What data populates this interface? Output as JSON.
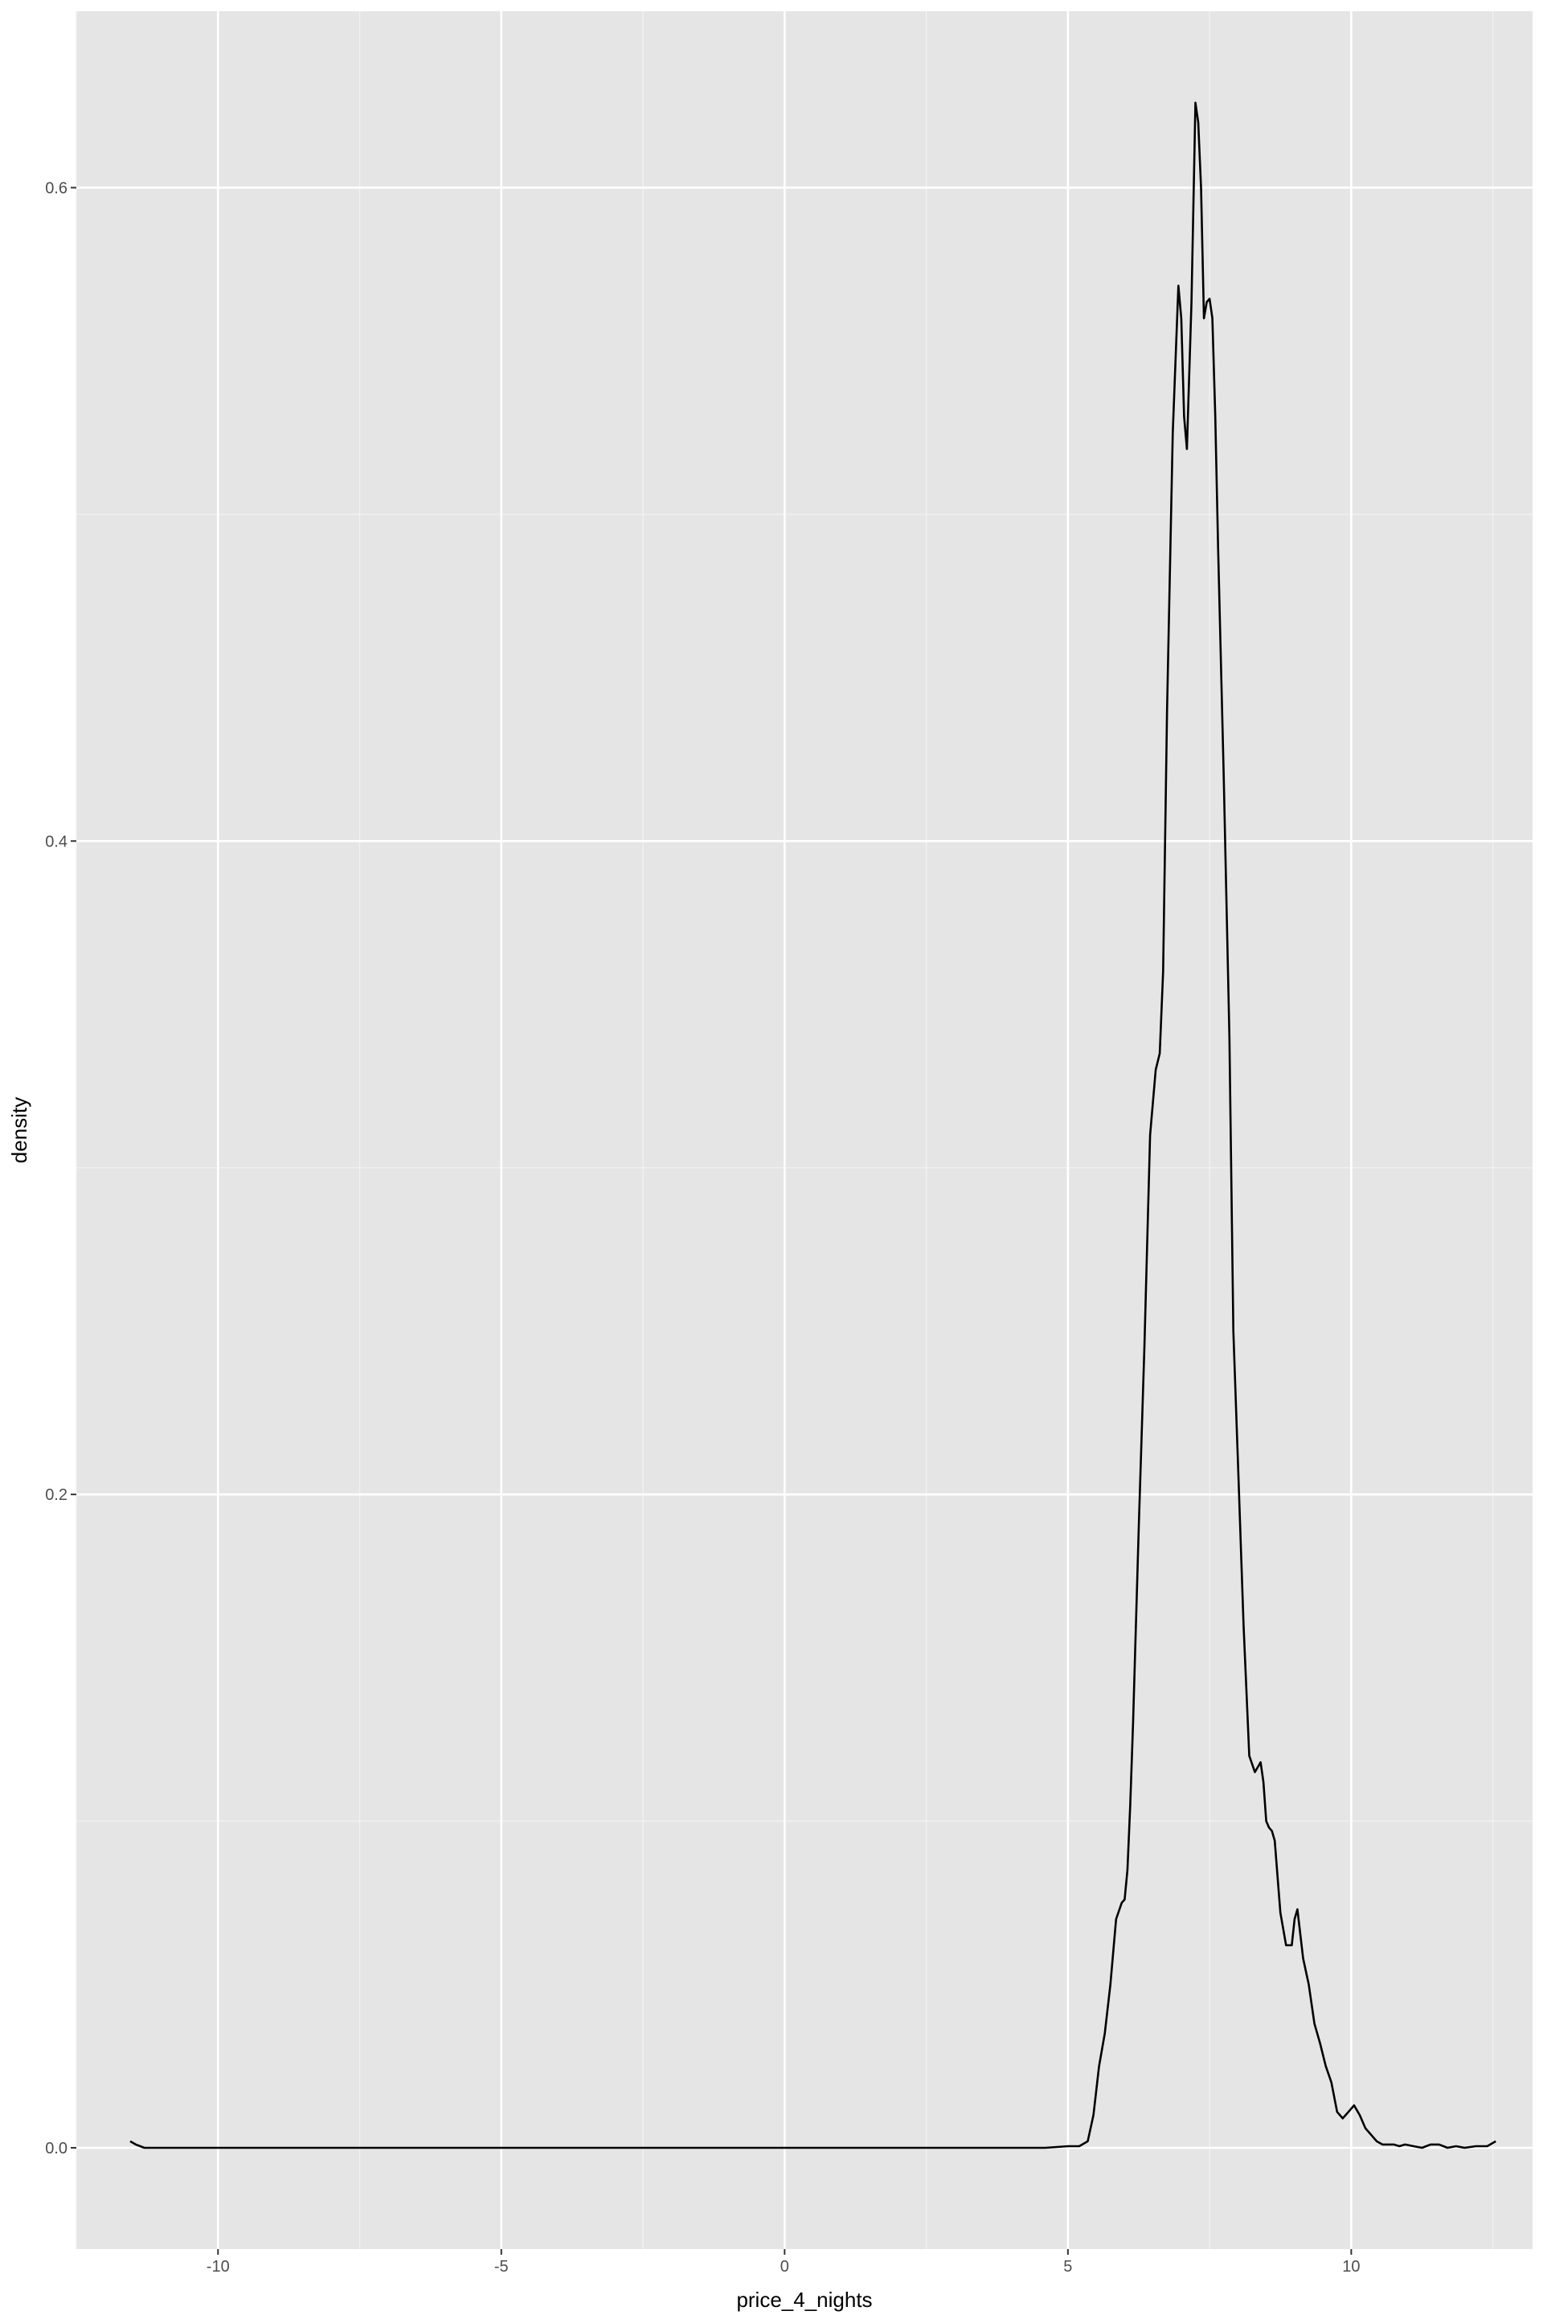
{
  "chart_data": {
    "type": "line",
    "title": "",
    "xlabel": "price_4_nights",
    "ylabel": "density",
    "xlim": [
      -12.5,
      13.2
    ],
    "ylim": [
      -0.031,
      0.654
    ],
    "x_ticks": [
      -10,
      -5,
      0,
      5,
      10
    ],
    "x_tick_labels": [
      "-10",
      "-5",
      "0",
      "5",
      "10"
    ],
    "y_ticks": [
      0.0,
      0.2,
      0.4,
      0.6
    ],
    "y_tick_labels": [
      "0.0",
      "0.2",
      "0.4",
      "0.6"
    ],
    "grid": true,
    "legend": "none",
    "colors": {
      "panel": "#e5e5e5",
      "grid_major": "#ffffff",
      "grid_minor": "#f2f2f2",
      "line": "#000000"
    },
    "series": [
      {
        "x": [
          -11.55,
          -11.45,
          -11.3,
          -11.0,
          -10.0,
          -5.0,
          0.0,
          4.6,
          5.0,
          5.2,
          5.35,
          5.45,
          5.55,
          5.65,
          5.75,
          5.85,
          5.95,
          6.0,
          6.05,
          6.1,
          6.15,
          6.25,
          6.35,
          6.45,
          6.55,
          6.62,
          6.68,
          6.75,
          6.85,
          6.95,
          7.0,
          7.05,
          7.1,
          7.18,
          7.25,
          7.3,
          7.35,
          7.4,
          7.45,
          7.5,
          7.55,
          7.6,
          7.65,
          7.75,
          7.85,
          7.92,
          8.0,
          8.1,
          8.2,
          8.3,
          8.4,
          8.45,
          8.5,
          8.55,
          8.6,
          8.65,
          8.75,
          8.85,
          8.95,
          9.0,
          9.05,
          9.15,
          9.25,
          9.35,
          9.45,
          9.55,
          9.65,
          9.75,
          9.85,
          9.95,
          10.05,
          10.15,
          10.25,
          10.35,
          10.45,
          10.55,
          10.65,
          10.75,
          10.85,
          10.95,
          11.1,
          11.25,
          11.4,
          11.55,
          11.7,
          11.85,
          12.0,
          12.2,
          12.4,
          12.55
        ],
        "y": [
          0.002,
          0.001,
          0.0,
          0.0,
          0.0,
          0.0,
          0.0,
          0.0,
          0.0005,
          0.0005,
          0.002,
          0.01,
          0.025,
          0.035,
          0.05,
          0.07,
          0.075,
          0.076,
          0.085,
          0.105,
          0.13,
          0.19,
          0.245,
          0.31,
          0.33,
          0.335,
          0.36,
          0.44,
          0.525,
          0.57,
          0.56,
          0.53,
          0.52,
          0.565,
          0.626,
          0.62,
          0.6,
          0.56,
          0.565,
          0.566,
          0.56,
          0.53,
          0.49,
          0.42,
          0.34,
          0.25,
          0.21,
          0.16,
          0.12,
          0.115,
          0.118,
          0.112,
          0.1,
          0.098,
          0.097,
          0.094,
          0.072,
          0.062,
          0.062,
          0.07,
          0.073,
          0.058,
          0.05,
          0.038,
          0.032,
          0.025,
          0.02,
          0.011,
          0.009,
          0.011,
          0.013,
          0.01,
          0.006,
          0.004,
          0.002,
          0.001,
          0.001,
          0.001,
          0.0005,
          0.001,
          0.0005,
          0.0,
          0.001,
          0.001,
          0.0,
          0.0005,
          0.0,
          0.0005,
          0.0005,
          0.002
        ]
      }
    ]
  }
}
